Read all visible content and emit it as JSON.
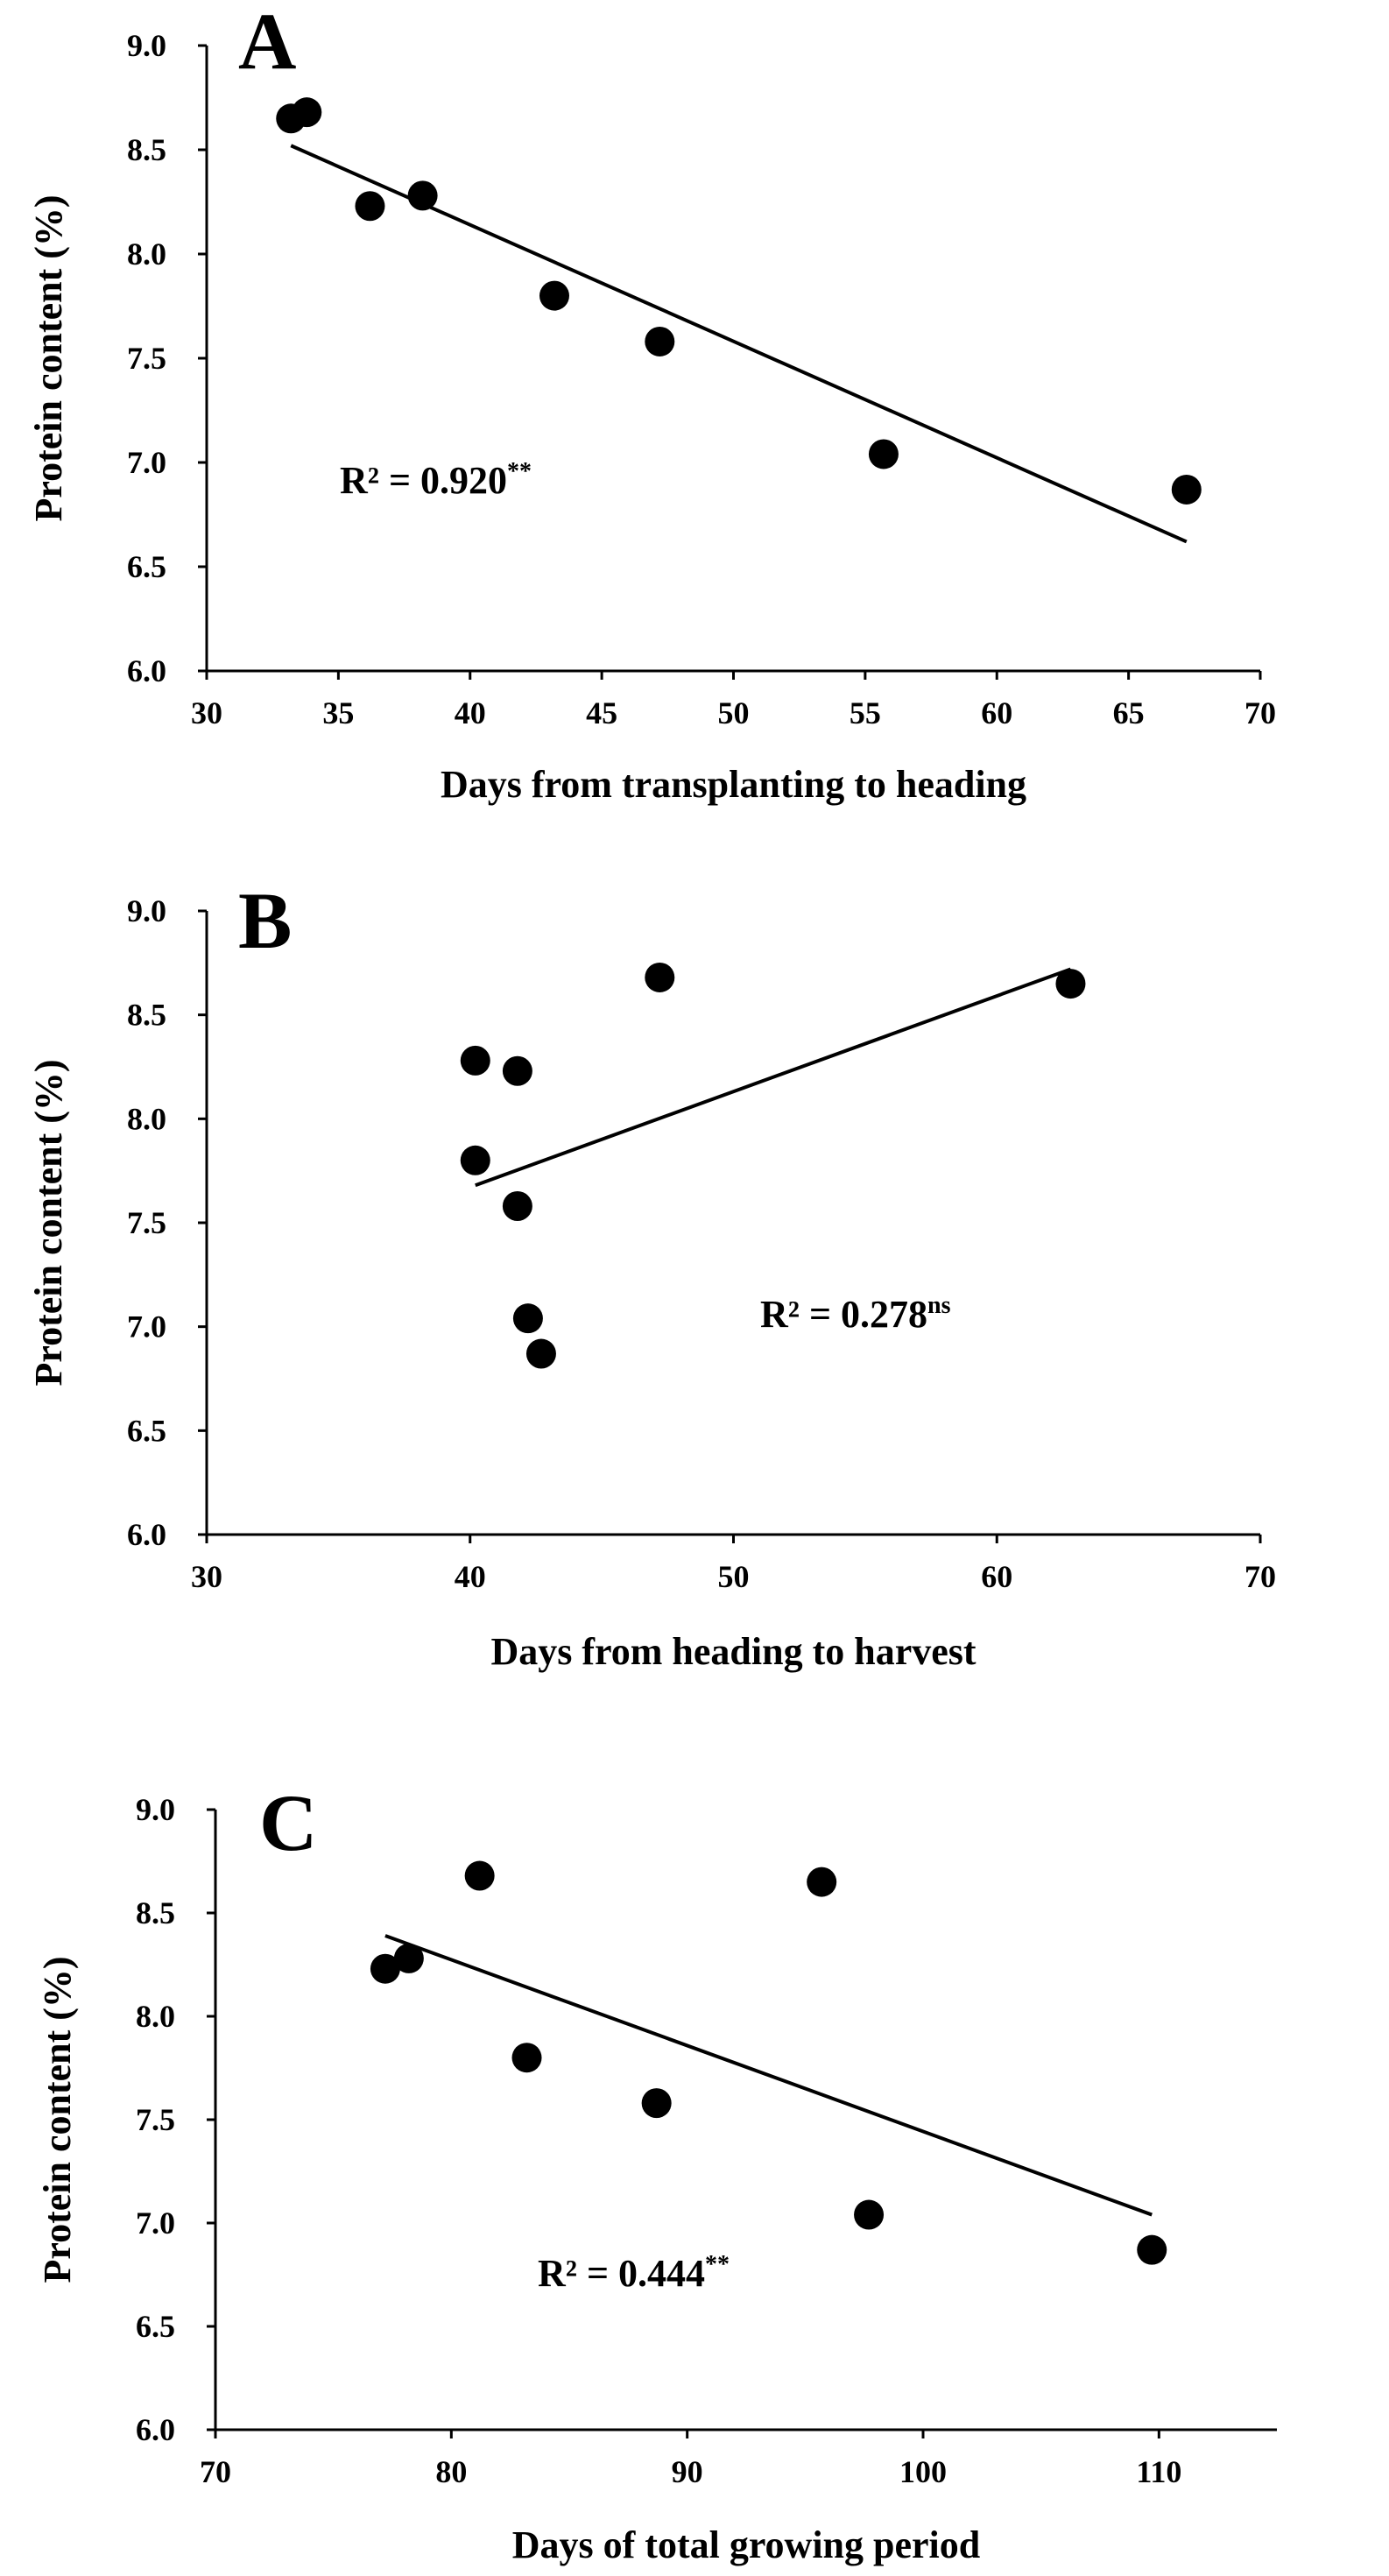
{
  "chart_data": [
    {
      "panel": "A",
      "type": "scatter",
      "xlabel": "Days from transplanting to heading",
      "ylabel": "Protein content (%)",
      "xlim": [
        30,
        70
      ],
      "ylim": [
        6.0,
        9.0
      ],
      "xticks": [
        30,
        35,
        40,
        45,
        50,
        55,
        60,
        65,
        70
      ],
      "yticks": [
        6.0,
        6.5,
        7.0,
        7.5,
        8.0,
        8.5,
        9.0
      ],
      "points": [
        {
          "x": 33.2,
          "y": 8.65
        },
        {
          "x": 33.8,
          "y": 8.68
        },
        {
          "x": 36.2,
          "y": 8.23
        },
        {
          "x": 38.2,
          "y": 8.28
        },
        {
          "x": 43.2,
          "y": 7.8
        },
        {
          "x": 47.2,
          "y": 7.58
        },
        {
          "x": 55.7,
          "y": 7.04
        },
        {
          "x": 67.2,
          "y": 6.87
        }
      ],
      "trendline": [
        {
          "x": 33.2,
          "y": 8.52
        },
        {
          "x": 67.2,
          "y": 6.62
        }
      ],
      "annotation": {
        "r2_text": "R² =  0.920",
        "sup": "**"
      },
      "grid": false,
      "legend": "none"
    },
    {
      "panel": "B",
      "type": "scatter",
      "xlabel": "Days from heading to harvest",
      "ylabel": "Protein content (%)",
      "xlim": [
        30,
        70
      ],
      "ylim": [
        6.0,
        9.0
      ],
      "xticks": [
        30,
        40,
        50,
        60,
        70
      ],
      "yticks": [
        6.0,
        6.5,
        7.0,
        7.5,
        8.0,
        8.5,
        9.0
      ],
      "points": [
        {
          "x": 40.2,
          "y": 8.28
        },
        {
          "x": 40.2,
          "y": 7.8
        },
        {
          "x": 41.8,
          "y": 8.23
        },
        {
          "x": 41.8,
          "y": 7.58
        },
        {
          "x": 42.2,
          "y": 7.04
        },
        {
          "x": 42.7,
          "y": 6.87
        },
        {
          "x": 47.2,
          "y": 8.68
        },
        {
          "x": 62.8,
          "y": 8.65
        }
      ],
      "trendline": [
        {
          "x": 40.2,
          "y": 7.68
        },
        {
          "x": 62.8,
          "y": 8.72
        }
      ],
      "annotation": {
        "r2_text": "R² =  0.278",
        "sup": "ns"
      },
      "grid": false,
      "legend": "none"
    },
    {
      "panel": "C",
      "type": "scatter",
      "xlabel": "Days of total growing period",
      "ylabel": "Protein content (%)",
      "xlim": [
        70,
        115
      ],
      "ylim": [
        6.0,
        9.0
      ],
      "xticks": [
        70,
        80,
        90,
        100,
        110
      ],
      "yticks": [
        6.0,
        6.5,
        7.0,
        7.5,
        8.0,
        8.5,
        9.0
      ],
      "points": [
        {
          "x": 77.2,
          "y": 8.23
        },
        {
          "x": 78.2,
          "y": 8.28
        },
        {
          "x": 81.2,
          "y": 8.68
        },
        {
          "x": 83.2,
          "y": 7.8
        },
        {
          "x": 88.7,
          "y": 7.58
        },
        {
          "x": 95.7,
          "y": 8.65
        },
        {
          "x": 97.7,
          "y": 7.04
        },
        {
          "x": 109.7,
          "y": 6.87
        }
      ],
      "trendline": [
        {
          "x": 77.2,
          "y": 8.39
        },
        {
          "x": 109.7,
          "y": 7.04
        }
      ],
      "annotation": {
        "r2_text": "R² = 0.444",
        "sup": "**"
      },
      "grid": false,
      "legend": "none"
    }
  ]
}
